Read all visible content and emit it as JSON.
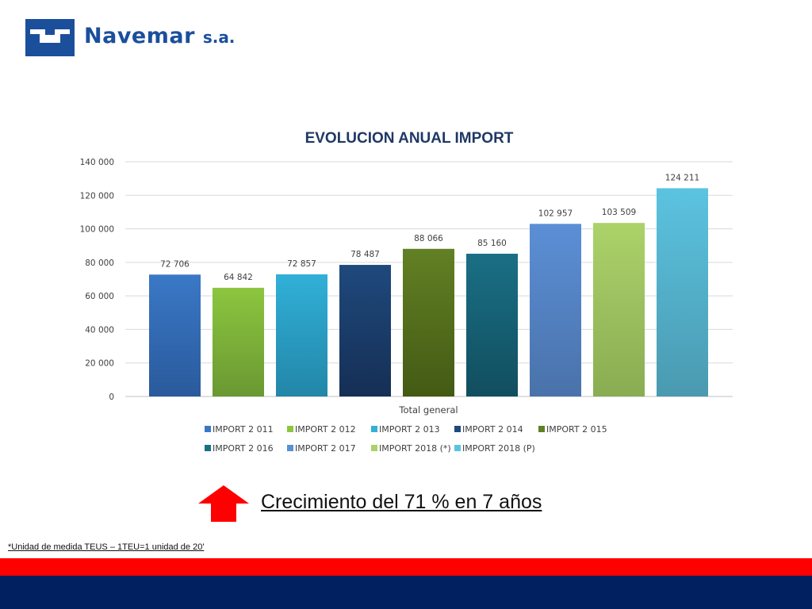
{
  "brand": {
    "name": "Navemar",
    "suffix": "s.a.",
    "color": "#1b4f9c"
  },
  "chart_data": {
    "type": "bar",
    "title": "EVOLUCION ANUAL IMPORT",
    "xlabel": "",
    "ylabel": "",
    "categories": [
      "Total general"
    ],
    "ylim": [
      0,
      140000
    ],
    "yticks": [
      0,
      20000,
      40000,
      60000,
      80000,
      100000,
      120000,
      140000
    ],
    "ytick_labels": [
      "0",
      "20 000",
      "40 000",
      "60 000",
      "80 000",
      "100 000",
      "120 000",
      "140 000"
    ],
    "grid": true,
    "legend": "bottom",
    "series": [
      {
        "name": "IMPORT   2 011",
        "values": [
          72706
        ],
        "label": "72 706",
        "color": "#3a78c6",
        "color_dark": "#2a5a9c"
      },
      {
        "name": "IMPORT   2 012",
        "values": [
          64842
        ],
        "label": "64 842",
        "color": "#8cc63f",
        "color_dark": "#6a9832"
      },
      {
        "name": "IMPORT   2 013",
        "values": [
          72857
        ],
        "label": "72 857",
        "color": "#31b0d8",
        "color_dark": "#2286a8"
      },
      {
        "name": "IMPORT   2 014",
        "values": [
          78487
        ],
        "label": "78 487",
        "color": "#1f497d",
        "color_dark": "#152f55"
      },
      {
        "name": "IMPORT   2 015",
        "values": [
          88066
        ],
        "label": "88 066",
        "color": "#628024",
        "color_dark": "#435a14"
      },
      {
        "name": "IMPORT   2 016",
        "values": [
          85160
        ],
        "label": "85 160",
        "color": "#1a6f85",
        "color_dark": "#114e5f"
      },
      {
        "name": "IMPORT   2 017",
        "values": [
          102957
        ],
        "label": "102 957",
        "color": "#5b8fd6",
        "color_dark": "#4a72aa"
      },
      {
        "name": "IMPORT  2018 (*)",
        "values": [
          103509
        ],
        "label": "103 509",
        "color": "#acd26a",
        "color_dark": "#8aac52"
      },
      {
        "name": "IMPORT  2018 (P)",
        "values": [
          124211
        ],
        "label": "124 211",
        "color": "#5bc3e0",
        "color_dark": "#4a9ab0"
      }
    ]
  },
  "growth": {
    "text": "Crecimiento del 71 % en 7 años",
    "arrow_color": "#ff0000"
  },
  "footnote": "*Unidad de medida TEUS – 1TEU=1 unidad de 20'",
  "bands": {
    "red": "#ff0000",
    "navy": "#002060"
  }
}
